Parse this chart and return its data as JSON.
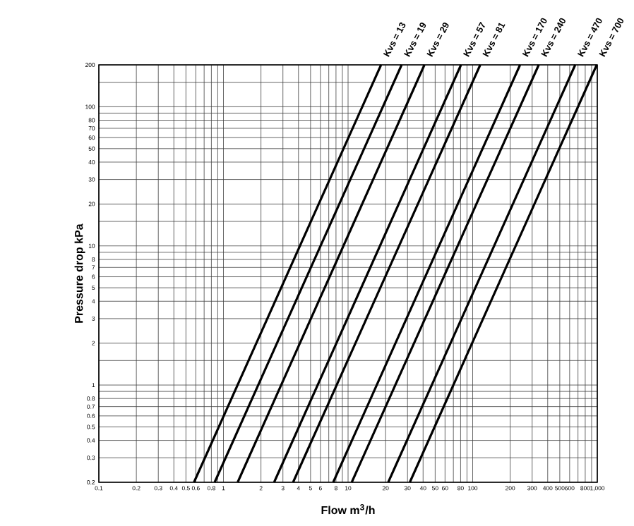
{
  "chart_data": {
    "type": "line",
    "xlabel": "Flow m$^{3}$/h",
    "ylabel": "Pressure drop kPa",
    "log": "xy",
    "grid": true,
    "marker": "none",
    "line_style": "solid",
    "xlim": [
      0.1,
      1000
    ],
    "ylim": [
      0.2,
      200
    ],
    "xticks": [
      0.1,
      0.2,
      0.3,
      0.4,
      0.5,
      0.6,
      {
        "value": 0.7,
        "label": null
      },
      0.8,
      {
        "value": 0.9,
        "label": null
      },
      1,
      2,
      3,
      4,
      5,
      6,
      {
        "value": 7,
        "label": null
      },
      8,
      {
        "value": 9,
        "label": null
      },
      10,
      20,
      30,
      40,
      50,
      60,
      {
        "value": 70,
        "label": null
      },
      80,
      {
        "value": 90,
        "label": null
      },
      100,
      200,
      300,
      400,
      500,
      600,
      {
        "value": 700,
        "label": null
      },
      800,
      {
        "value": 900,
        "label": null
      },
      {
        "value": 1000,
        "label": "1,000"
      }
    ],
    "yticks": [
      0.2,
      0.3,
      0.4,
      0.5,
      0.6,
      0.7,
      0.8,
      {
        "value": 0.9,
        "label": null
      },
      1,
      {
        "value": 1.5,
        "label": null
      },
      2,
      3,
      4,
      5,
      6,
      7,
      8,
      {
        "value": 9,
        "label": null
      },
      10,
      {
        "value": 15,
        "label": null
      },
      20,
      30,
      40,
      50,
      60,
      70,
      80,
      {
        "value": 90,
        "label": null
      },
      100,
      {
        "value": 150,
        "label": null
      },
      200
    ],
    "series": [
      {
        "name": "Kvs = 13",
        "color": "#000000",
        "x": [
          0.58,
          18.4
        ],
        "values": [
          0.2,
          200
        ]
      },
      {
        "name": "Kvs = 19",
        "color": "#000000",
        "x": [
          0.85,
          26.9
        ],
        "values": [
          0.2,
          200
        ]
      },
      {
        "name": "Kvs = 29",
        "color": "#000000",
        "x": [
          1.3,
          41
        ],
        "values": [
          0.2,
          200
        ]
      },
      {
        "name": "Kvs = 57",
        "color": "#000000",
        "x": [
          2.55,
          80.6
        ],
        "values": [
          0.2,
          200
        ]
      },
      {
        "name": "Kvs = 81",
        "color": "#000000",
        "x": [
          3.62,
          115
        ],
        "values": [
          0.2,
          200
        ]
      },
      {
        "name": "Kvs = 170",
        "color": "#000000",
        "x": [
          7.6,
          240
        ],
        "values": [
          0.2,
          200
        ]
      },
      {
        "name": "Kvs = 240",
        "color": "#000000",
        "x": [
          10.7,
          339
        ],
        "values": [
          0.2,
          200
        ]
      },
      {
        "name": "Kvs = 470",
        "color": "#000000",
        "x": [
          21,
          665
        ],
        "values": [
          0.2,
          200
        ]
      },
      {
        "name": "Kvs = 700",
        "color": "#000000",
        "x": [
          31.3,
          990
        ],
        "values": [
          0.2,
          200
        ]
      }
    ]
  }
}
